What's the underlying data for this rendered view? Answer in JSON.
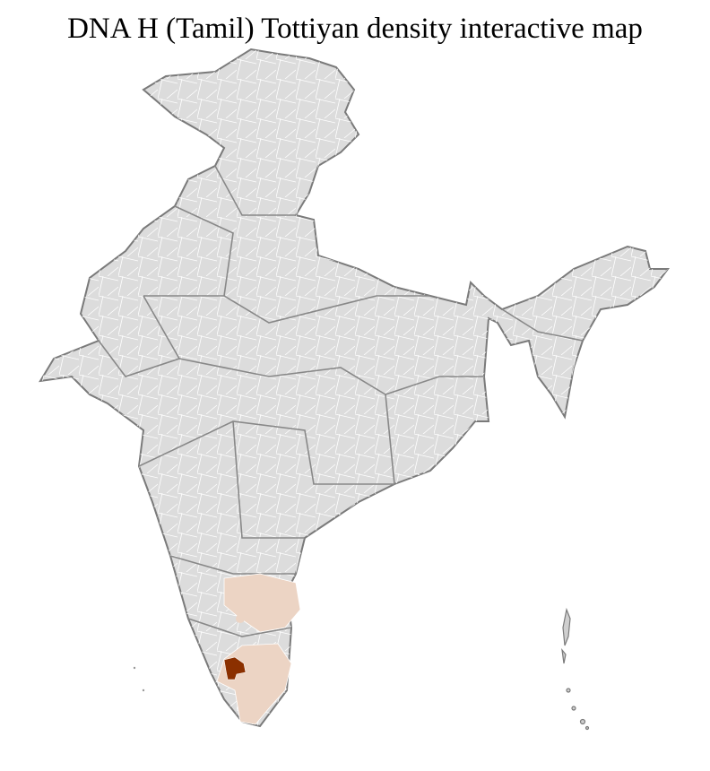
{
  "title": "DNA H (Tamil) Tottiyan density interactive map",
  "map": {
    "region": "India",
    "colors": {
      "base": "#dcdcdc",
      "border": "#7a7a7a",
      "district_border": "#ffffff",
      "low_density": "#ecd4c4",
      "high_density": "#8b3000"
    },
    "highlighted_regions": [
      {
        "level": "low",
        "area": "Andhra Pradesh south"
      },
      {
        "level": "low",
        "area": "Tamil Nadu"
      },
      {
        "level": "high",
        "area": "Tamil Nadu west district"
      }
    ]
  }
}
